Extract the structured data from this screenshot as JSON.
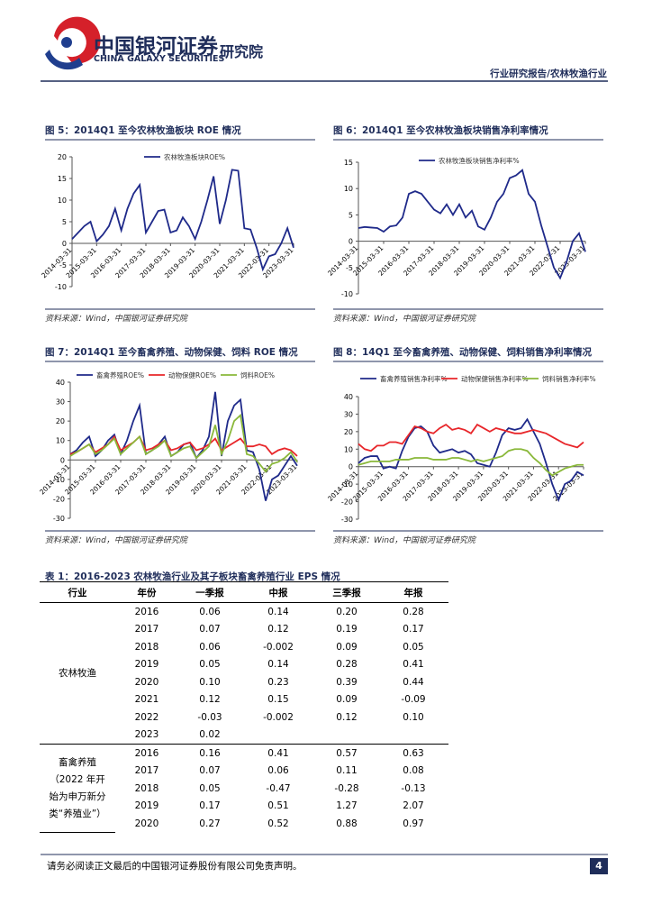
{
  "header": {
    "company_cn": "中国银河证券",
    "company_en": "CHINA GALAXY SECURITIES",
    "institute": "研究院",
    "report_type": "行业研究报告/农林牧渔行业"
  },
  "figures": [
    {
      "title": "图 5：2014Q1 至今农林牧渔板块 ROE 情况",
      "source": "资料来源：Wind，中国银河证券研究院",
      "chart_data": {
        "type": "line",
        "categories": [
          "2014-03-31",
          null,
          null,
          null,
          "2015-03-31",
          null,
          null,
          null,
          "2016-03-31",
          null,
          null,
          null,
          "2017-03-31",
          null,
          null,
          null,
          "2018-03-31",
          null,
          null,
          null,
          "2019-03-31",
          null,
          null,
          null,
          "2020-03-31",
          null,
          null,
          null,
          "2021-03-31",
          null,
          null,
          null,
          "2022-03-31",
          null,
          null,
          null,
          "2023-03-31"
        ],
        "ylim": [
          -10,
          20
        ],
        "yticks": [
          -10,
          -5,
          0,
          5,
          10,
          15,
          20
        ],
        "series": [
          {
            "name": "农林牧渔板块ROE%",
            "color": "#1f2a8a",
            "values": [
              1,
              2.5,
              4,
              5,
              0.5,
              2,
              4,
              8,
              3,
              8,
              11.5,
              13.5,
              2.5,
              5,
              7.5,
              7.8,
              2.5,
              3,
              6,
              4,
              1,
              5,
              10,
              15.5,
              4.5,
              10,
              17,
              16.8,
              3.5,
              3.2,
              -1,
              -6,
              -3,
              -2.5,
              0,
              3.5,
              -1
            ]
          }
        ]
      }
    },
    {
      "title": "图 6：2014Q1 至今农林牧渔板块销售净利率情况",
      "source": "资料来源：Wind，中国银河证券研究院",
      "chart_data": {
        "type": "line",
        "categories": [
          "2014-03-31",
          null,
          null,
          null,
          "2015-03-31",
          null,
          null,
          null,
          "2016-03-31",
          null,
          null,
          null,
          "2017-03-31",
          null,
          null,
          null,
          "2018-03-31",
          null,
          null,
          null,
          "2019-03-31",
          null,
          null,
          null,
          "2020-03-31",
          null,
          null,
          null,
          "2021-03-31",
          null,
          null,
          null,
          "2022-03-31",
          null,
          null,
          null,
          "2023-03-31"
        ],
        "ylim": [
          -10,
          15
        ],
        "yticks": [
          -10,
          -5,
          0,
          5,
          10,
          15
        ],
        "series": [
          {
            "name": "农林牧渔板块销售净利率%",
            "color": "#1f2a8a",
            "values": [
              2.5,
              2.7,
              2.6,
              2.5,
              1.8,
              2.8,
              3,
              4.5,
              9,
              9.5,
              9,
              7.5,
              6,
              5.3,
              7,
              5,
              7,
              4.5,
              5.8,
              2.8,
              2.2,
              4.5,
              7.5,
              9,
              12,
              12.5,
              13.5,
              9,
              7.5,
              3,
              -1,
              -5,
              -7,
              -4,
              0,
              1.5,
              -2
            ]
          }
        ]
      }
    },
    {
      "title": "图 7：2014Q1 至今畜禽养殖、动物保健、饲料 ROE 情况",
      "source": "资料来源：Wind，中国银河证券研究院",
      "chart_data": {
        "type": "line",
        "categories": [
          "2014-03-31",
          null,
          null,
          null,
          "2015-03-31",
          null,
          null,
          null,
          "2016-03-31",
          null,
          null,
          null,
          "2017-03-31",
          null,
          null,
          null,
          "2018-03-31",
          null,
          null,
          null,
          "2019-03-31",
          null,
          null,
          null,
          "2020-03-31",
          null,
          null,
          null,
          "2021-03-31",
          null,
          null,
          null,
          "2022-03-31",
          null,
          null,
          null,
          "2023-03-31"
        ],
        "ylim": [
          -30,
          40
        ],
        "yticks": [
          -30,
          -20,
          -10,
          0,
          10,
          20,
          30,
          40
        ],
        "series": [
          {
            "name": "畜禽养殖ROE%",
            "color": "#1f2a8a",
            "values": [
              3,
              5,
              9,
              12,
              2,
              5,
              10,
              13,
              3,
              10,
              20,
              28,
              3,
              5,
              8,
              12,
              2,
              4,
              8,
              9,
              1,
              5,
              12,
              35,
              2,
              20,
              28,
              31,
              5,
              4,
              -5,
              -21,
              -10,
              -8,
              -3,
              2,
              -3
            ]
          },
          {
            "name": "动物保健ROE%",
            "color": "#e8262a",
            "values": [
              3,
              4,
              6,
              8,
              4,
              6,
              8,
              12,
              5,
              7,
              9,
              12,
              5,
              6,
              8,
              10,
              5,
              6,
              8,
              9,
              5,
              6,
              8,
              11,
              5,
              7,
              9,
              11,
              7,
              7,
              8,
              7,
              3,
              5,
              6,
              5,
              2
            ]
          },
          {
            "name": "饲料ROE%",
            "color": "#8ab83a",
            "values": [
              2,
              4,
              6,
              8,
              3,
              5,
              8,
              11,
              3,
              6,
              9,
              12,
              3,
              5,
              7,
              10,
              2,
              4,
              6,
              7,
              1,
              4,
              7,
              18,
              3,
              10,
              20,
              23,
              3,
              2,
              -2,
              -6,
              -2,
              -1,
              1,
              4,
              -1
            ]
          }
        ]
      }
    },
    {
      "title": "图 8：14Q1 至今畜禽养殖、动物保健、饲料销售净利率情况",
      "source": "资料来源：Wind，中国银河证券研究院",
      "chart_data": {
        "type": "line",
        "categories": [
          "2014-03-31",
          null,
          null,
          null,
          "2015-03-31",
          null,
          null,
          null,
          "2016-03-31",
          null,
          null,
          null,
          "2017-03-31",
          null,
          null,
          null,
          "2018-03-31",
          null,
          null,
          null,
          "2019-03-31",
          null,
          null,
          null,
          "2020-03-31",
          null,
          null,
          null,
          "2021-03-31",
          null,
          null,
          null,
          "2022-03-31",
          null,
          null,
          null,
          "2023-03-31"
        ],
        "ylim": [
          -30,
          40
        ],
        "yticks": [
          -30,
          -20,
          -10,
          0,
          10,
          20,
          30,
          40
        ],
        "series": [
          {
            "name": "畜禽养殖销售净利率%",
            "color": "#1f2a8a",
            "values": [
              2,
              5,
              6,
              6,
              -1,
              0,
              -1,
              9,
              17,
              22,
              23,
              20,
              12,
              8,
              9,
              10,
              8,
              9,
              7,
              2,
              1,
              0,
              8,
              18,
              22,
              21,
              22,
              27,
              20,
              13,
              2,
              -10,
              -19,
              -10,
              -8,
              -3,
              -5
            ]
          },
          {
            "name": "动物保健销售净利率%",
            "color": "#e8262a",
            "values": [
              13,
              10,
              9,
              12,
              12,
              14,
              14,
              13,
              18,
              23,
              22,
              20,
              19,
              22,
              24,
              21,
              22,
              21,
              19,
              24,
              22,
              20,
              22,
              21,
              20,
              19,
              19,
              20,
              21,
              20,
              19,
              17,
              15,
              13,
              12,
              11,
              14
            ]
          },
          {
            "name": "饲料销售净利率%",
            "color": "#8ab83a",
            "values": [
              1,
              2,
              3,
              3,
              3,
              3,
              4,
              4,
              4,
              5,
              5,
              5,
              4,
              4,
              4,
              5,
              5,
              4,
              3,
              4,
              3,
              4,
              5,
              6,
              9,
              10,
              10,
              9,
              5,
              2,
              -2,
              -5,
              -3,
              -1,
              0,
              1,
              1
            ]
          }
        ]
      }
    }
  ],
  "table": {
    "title": "表 1：2016-2023 农林牧渔行业及其子板块畜禽养殖行业 EPS 情况",
    "columns": [
      "行业",
      "年份",
      "一季报",
      "中报",
      "三季报",
      "年报"
    ],
    "groups": [
      {
        "industry": "农林牧渔",
        "rows": [
          [
            "2016",
            "0.06",
            "0.14",
            "0.20",
            "0.28"
          ],
          [
            "2017",
            "0.07",
            "0.12",
            "0.19",
            "0.17"
          ],
          [
            "2018",
            "0.06",
            "-0.002",
            "0.09",
            "0.05"
          ],
          [
            "2019",
            "0.05",
            "0.14",
            "0.28",
            "0.41"
          ],
          [
            "2020",
            "0.10",
            "0.23",
            "0.39",
            "0.44"
          ],
          [
            "2021",
            "0.12",
            "0.15",
            "0.09",
            "-0.09"
          ],
          [
            "2022",
            "-0.03",
            "-0.002",
            "0.12",
            "0.10"
          ],
          [
            "2023",
            "0.02",
            "",
            "",
            ""
          ]
        ]
      },
      {
        "industry": "畜禽养殖（2022 年开始为申万新分类“养殖业”）",
        "rows": [
          [
            "2016",
            "0.16",
            "0.41",
            "0.57",
            "0.63"
          ],
          [
            "2017",
            "0.07",
            "0.06",
            "0.11",
            "0.08"
          ],
          [
            "2018",
            "0.05",
            "-0.47",
            "-0.28",
            "-0.13"
          ],
          [
            "2019",
            "0.17",
            "0.51",
            "1.27",
            "2.07"
          ],
          [
            "2020",
            "0.27",
            "0.52",
            "0.88",
            "0.97"
          ]
        ]
      }
    ]
  },
  "footer": {
    "disclaimer": "请务必阅读正文最后的中国银河证券股份有限公司免责声明。",
    "page": "4"
  }
}
